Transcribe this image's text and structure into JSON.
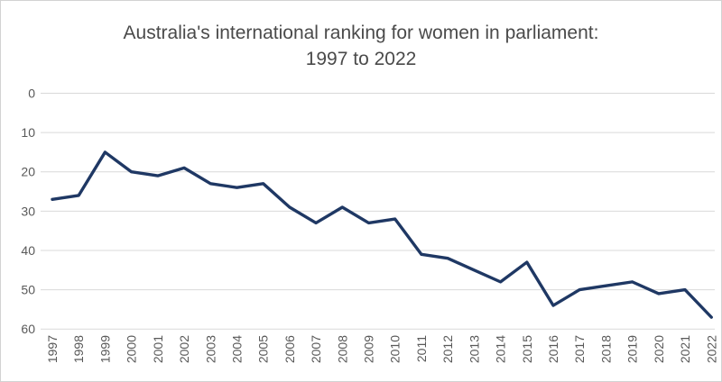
{
  "chart_data": {
    "type": "line",
    "title_line1": "Australia's international ranking for women in parliament:",
    "title_line2": "1997 to 2022",
    "xlabel": "",
    "ylabel": "",
    "categories": [
      "1997",
      "1998",
      "1999",
      "2000",
      "2001",
      "2002",
      "2003",
      "2004",
      "2005",
      "2006",
      "2007",
      "2008",
      "2009",
      "2010",
      "2011",
      "2012",
      "2013",
      "2014",
      "2015",
      "2016",
      "2017",
      "2018",
      "2019",
      "2020",
      "2021",
      "2022"
    ],
    "series": [
      {
        "name": "Australia's international ranking",
        "values": [
          27,
          26,
          15,
          20,
          21,
          19,
          23,
          24,
          23,
          29,
          33,
          29,
          33,
          32,
          41,
          42,
          45,
          48,
          43,
          54,
          50,
          49,
          48,
          51,
          50,
          57
        ]
      }
    ],
    "yticks": [
      0,
      10,
      20,
      30,
      40,
      50,
      60
    ],
    "ylim": [
      0,
      60
    ],
    "y_axis_inverted": true,
    "grid": true,
    "legend_position": "none"
  },
  "colors": {
    "line": "#1f3864",
    "gridline": "#d9d9d9",
    "tick_text": "#595959",
    "title_text": "#4a4a4a",
    "frame_border": "#d2d2d2",
    "background": "#ffffff"
  }
}
